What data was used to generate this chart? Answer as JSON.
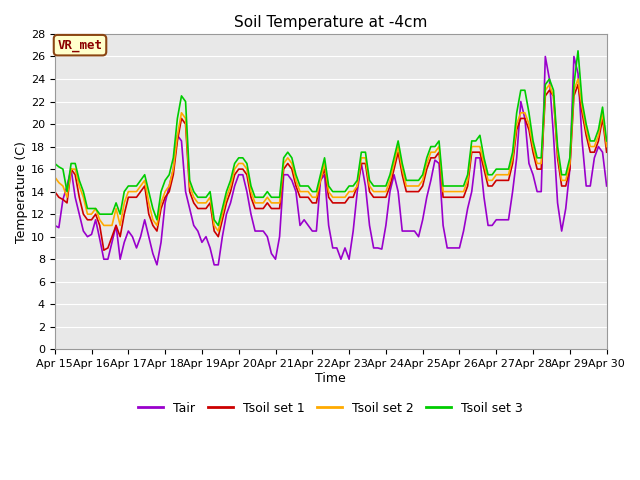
{
  "title": "Soil Temperature at -4cm",
  "xlabel": "Time",
  "ylabel": "Temperature (C)",
  "ylim": [
    0,
    28
  ],
  "fig_bg_color": "#ffffff",
  "plot_bg_color": "#e8e8e8",
  "vr_met_label": "VR_met",
  "series_order": [
    "Tair",
    "Tsoil set 1",
    "Tsoil set 2",
    "Tsoil set 3"
  ],
  "series": {
    "Tair": {
      "color": "#9900cc",
      "lw": 1.2,
      "values": [
        11.0,
        10.8,
        13.3,
        14.5,
        16.0,
        13.5,
        12.0,
        10.5,
        10.0,
        10.2,
        11.5,
        9.8,
        8.0,
        8.0,
        9.5,
        11.0,
        8.0,
        9.5,
        10.5,
        10.0,
        9.0,
        10.0,
        11.5,
        10.0,
        8.5,
        7.5,
        9.5,
        13.0,
        14.5,
        16.0,
        19.0,
        18.5,
        14.0,
        12.5,
        11.0,
        10.5,
        9.5,
        10.0,
        9.0,
        7.5,
        7.5,
        10.0,
        12.0,
        13.0,
        14.5,
        15.5,
        15.5,
        14.0,
        12.0,
        10.5,
        10.5,
        10.5,
        10.0,
        8.5,
        8.0,
        10.0,
        15.5,
        15.5,
        15.0,
        14.0,
        11.0,
        11.5,
        11.0,
        10.5,
        10.5,
        15.0,
        15.5,
        11.0,
        9.0,
        9.0,
        8.0,
        9.0,
        8.0,
        10.5,
        14.0,
        16.5,
        14.5,
        11.0,
        9.0,
        9.0,
        8.9,
        11.0,
        14.0,
        15.5,
        14.0,
        10.5,
        10.5,
        10.5,
        10.5,
        10.0,
        11.5,
        13.5,
        15.0,
        16.8,
        16.5,
        11.0,
        9.0,
        9.0,
        9.0,
        9.0,
        10.5,
        12.5,
        14.0,
        17.0,
        17.0,
        13.5,
        11.0,
        11.0,
        11.5,
        11.5,
        11.5,
        11.5,
        14.0,
        17.0,
        22.0,
        20.5,
        16.5,
        15.5,
        14.0,
        14.0,
        26.0,
        24.0,
        19.0,
        13.0,
        10.5,
        12.5,
        16.0,
        26.0,
        24.5,
        18.5,
        14.5,
        14.5,
        17.0,
        18.0,
        17.5,
        14.5
      ]
    },
    "Tsoil set 1": {
      "color": "#cc0000",
      "lw": 1.2,
      "values": [
        14.0,
        13.5,
        13.3,
        13.0,
        16.0,
        15.5,
        13.5,
        12.0,
        11.5,
        11.5,
        12.0,
        11.0,
        8.8,
        9.0,
        10.0,
        11.0,
        10.0,
        12.0,
        13.5,
        13.5,
        13.5,
        14.0,
        14.5,
        12.0,
        11.0,
        10.5,
        12.5,
        13.5,
        14.0,
        15.5,
        18.5,
        20.5,
        20.0,
        14.0,
        13.0,
        12.5,
        12.5,
        12.5,
        13.0,
        10.5,
        10.0,
        11.5,
        13.0,
        14.0,
        15.5,
        16.0,
        16.0,
        15.5,
        13.5,
        12.5,
        12.5,
        12.5,
        13.0,
        12.5,
        12.5,
        12.5,
        16.0,
        16.5,
        16.0,
        14.5,
        13.5,
        13.5,
        13.5,
        13.0,
        13.0,
        15.0,
        16.0,
        13.5,
        13.0,
        13.0,
        13.0,
        13.0,
        13.5,
        13.5,
        14.5,
        16.5,
        16.5,
        14.0,
        13.5,
        13.5,
        13.5,
        13.5,
        14.5,
        16.0,
        17.5,
        15.5,
        14.0,
        14.0,
        14.0,
        14.0,
        14.5,
        16.0,
        17.0,
        17.0,
        17.5,
        13.5,
        13.5,
        13.5,
        13.5,
        13.5,
        13.5,
        14.5,
        17.5,
        17.5,
        17.5,
        16.0,
        14.5,
        14.5,
        15.0,
        15.0,
        15.0,
        15.0,
        16.5,
        19.5,
        20.5,
        20.5,
        19.5,
        17.5,
        16.0,
        16.0,
        22.5,
        23.0,
        22.5,
        17.0,
        14.5,
        14.5,
        16.0,
        22.5,
        23.5,
        21.0,
        19.0,
        17.5,
        17.5,
        18.5,
        20.5,
        17.5
      ]
    },
    "Tsoil set 2": {
      "color": "#ffaa00",
      "lw": 1.2,
      "values": [
        15.3,
        14.8,
        14.5,
        13.5,
        16.0,
        16.0,
        14.5,
        13.5,
        12.0,
        12.0,
        12.5,
        11.5,
        11.0,
        11.0,
        11.0,
        12.5,
        11.0,
        13.0,
        14.0,
        14.0,
        14.0,
        14.5,
        15.0,
        13.0,
        11.5,
        11.0,
        13.0,
        14.0,
        14.5,
        16.0,
        19.0,
        21.0,
        20.5,
        14.5,
        13.5,
        13.0,
        13.0,
        13.0,
        13.5,
        11.0,
        10.5,
        12.0,
        13.5,
        14.5,
        16.0,
        16.5,
        16.5,
        16.0,
        14.0,
        13.0,
        13.0,
        13.0,
        13.5,
        13.0,
        13.0,
        13.0,
        16.5,
        17.0,
        16.5,
        15.0,
        14.0,
        14.0,
        14.0,
        13.5,
        13.5,
        15.0,
        16.5,
        14.0,
        13.5,
        13.5,
        13.5,
        13.5,
        14.0,
        14.0,
        14.5,
        17.0,
        17.0,
        14.5,
        14.0,
        14.0,
        14.0,
        14.0,
        15.0,
        16.5,
        18.0,
        16.0,
        14.5,
        14.5,
        14.5,
        14.5,
        15.0,
        16.5,
        17.5,
        17.5,
        18.0,
        14.0,
        14.0,
        14.0,
        14.0,
        14.0,
        14.0,
        15.0,
        18.0,
        18.0,
        18.0,
        16.5,
        15.0,
        15.0,
        15.5,
        15.5,
        15.5,
        15.5,
        17.0,
        20.0,
        21.0,
        21.0,
        20.0,
        18.0,
        16.5,
        16.5,
        23.0,
        23.5,
        22.5,
        17.5,
        15.0,
        15.0,
        16.5,
        23.0,
        24.0,
        21.5,
        19.5,
        18.0,
        18.0,
        19.0,
        21.0,
        18.0
      ]
    },
    "Tsoil set 3": {
      "color": "#00cc00",
      "lw": 1.2,
      "values": [
        16.5,
        16.2,
        16.0,
        14.0,
        16.5,
        16.5,
        15.0,
        14.0,
        12.5,
        12.5,
        12.5,
        12.0,
        12.0,
        12.0,
        12.0,
        13.0,
        12.0,
        14.0,
        14.5,
        14.5,
        14.5,
        15.0,
        15.5,
        14.0,
        12.5,
        11.5,
        14.0,
        15.0,
        15.5,
        17.0,
        20.5,
        22.5,
        22.0,
        15.0,
        14.0,
        13.5,
        13.5,
        13.5,
        14.0,
        11.5,
        11.0,
        12.5,
        14.0,
        15.0,
        16.5,
        17.0,
        17.0,
        16.5,
        14.5,
        13.5,
        13.5,
        13.5,
        14.0,
        13.5,
        13.5,
        13.5,
        17.0,
        17.5,
        17.0,
        15.5,
        14.5,
        14.5,
        14.5,
        14.0,
        14.0,
        15.5,
        17.0,
        14.5,
        14.0,
        14.0,
        14.0,
        14.0,
        14.5,
        14.5,
        15.0,
        17.5,
        17.5,
        15.0,
        14.5,
        14.5,
        14.5,
        14.5,
        15.5,
        17.0,
        18.5,
        16.5,
        15.0,
        15.0,
        15.0,
        15.0,
        15.5,
        17.0,
        18.0,
        18.0,
        18.5,
        14.5,
        14.5,
        14.5,
        14.5,
        14.5,
        14.5,
        15.5,
        18.5,
        18.5,
        19.0,
        17.0,
        15.5,
        15.5,
        16.0,
        16.0,
        16.0,
        16.0,
        17.5,
        21.0,
        23.0,
        23.0,
        21.0,
        18.5,
        17.0,
        17.0,
        23.5,
        24.0,
        23.0,
        18.0,
        15.5,
        15.5,
        17.0,
        23.5,
        26.5,
        22.0,
        20.0,
        18.5,
        18.5,
        19.5,
        21.5,
        18.5
      ]
    }
  },
  "xtick_labels": [
    "Apr 15",
    "Apr 16",
    "Apr 17",
    "Apr 18",
    "Apr 19",
    "Apr 20",
    "Apr 21",
    "Apr 22",
    "Apr 23",
    "Apr 24",
    "Apr 25",
    "Apr 26",
    "Apr 27",
    "Apr 28",
    "Apr 29",
    "Apr 30"
  ],
  "ytick_values": [
    0,
    2,
    4,
    6,
    8,
    10,
    12,
    14,
    16,
    18,
    20,
    22,
    24,
    26,
    28
  ],
  "legend_items": [
    {
      "label": "Tair",
      "color": "#9900cc"
    },
    {
      "label": "Tsoil set 1",
      "color": "#cc0000"
    },
    {
      "label": "Tsoil set 2",
      "color": "#ffaa00"
    },
    {
      "label": "Tsoil set 3",
      "color": "#00cc00"
    }
  ]
}
